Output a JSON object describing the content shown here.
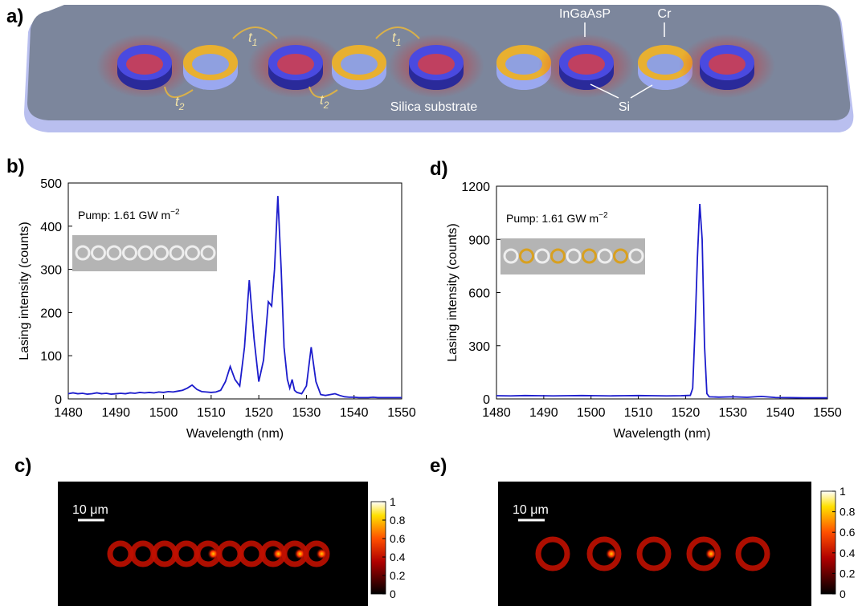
{
  "figure_a": {
    "label": "a)",
    "coupling": [
      {
        "symbol": "t",
        "subscript": "1"
      },
      {
        "symbol": "t",
        "subscript": "1"
      },
      {
        "symbol": "t",
        "subscript": "2"
      },
      {
        "symbol": "t",
        "subscript": "2"
      }
    ],
    "materials": [
      "InGaAsP",
      "Cr",
      "Silica substrate",
      "Si"
    ]
  },
  "chart_data": [
    {
      "type": "line",
      "panel_label": "b)",
      "xlabel": "Wavelength (nm)",
      "ylabel": "Lasing intensity (counts)",
      "annotation": {
        "text": "Pump: 1.61 GW m",
        "superscript": "−2"
      },
      "xlim": [
        1480,
        1550
      ],
      "xticks": [
        1480,
        1490,
        1500,
        1510,
        1520,
        1530,
        1540,
        1550
      ],
      "ylim": [
        0,
        500
      ],
      "yticks": [
        0,
        100,
        200,
        300,
        400,
        500
      ],
      "x": [
        1480,
        1481,
        1482,
        1483,
        1484,
        1485,
        1486,
        1487,
        1488,
        1489,
        1490,
        1491,
        1492,
        1493,
        1494,
        1495,
        1496,
        1497,
        1498,
        1499,
        1500,
        1501,
        1502,
        1503,
        1504,
        1505,
        1506,
        1507,
        1508,
        1509,
        1510,
        1511,
        1512,
        1513,
        1514,
        1515,
        1516,
        1517,
        1518,
        1519,
        1520,
        1521,
        1522,
        1522.7,
        1523.3,
        1524,
        1524.7,
        1525.3,
        1526,
        1526.5,
        1527,
        1527.5,
        1528,
        1529,
        1530,
        1531,
        1532,
        1533,
        1534,
        1535,
        1536,
        1537,
        1538,
        1539,
        1540,
        1541,
        1542,
        1543,
        1544,
        1545,
        1546,
        1547,
        1548,
        1549,
        1550
      ],
      "series": [
        {
          "color": "#1c1ccc",
          "values": [
            12,
            14,
            12,
            13,
            11,
            12,
            14,
            12,
            13,
            11,
            12,
            13,
            12,
            14,
            13,
            15,
            14,
            15,
            14,
            16,
            15,
            17,
            16,
            18,
            20,
            25,
            32,
            22,
            17,
            16,
            15,
            16,
            20,
            40,
            75,
            45,
            30,
            120,
            275,
            140,
            40,
            90,
            225,
            215,
            300,
            470,
            300,
            120,
            45,
            25,
            45,
            20,
            15,
            12,
            30,
            120,
            40,
            10,
            8,
            10,
            12,
            8,
            5,
            4,
            4,
            3,
            3,
            3,
            4,
            3,
            3,
            3,
            3,
            3,
            3
          ]
        }
      ]
    },
    {
      "type": "line",
      "panel_label": "d)",
      "xlabel": "Wavelength (nm)",
      "ylabel": "Lasing intensity (counts)",
      "annotation": {
        "text": "Pump: 1.61 GW m",
        "superscript": "−2"
      },
      "xlim": [
        1480,
        1550
      ],
      "xticks": [
        1480,
        1490,
        1500,
        1510,
        1520,
        1530,
        1540,
        1550
      ],
      "ylim": [
        0,
        1200
      ],
      "yticks": [
        0,
        300,
        600,
        900,
        1200
      ],
      "x": [
        1480,
        1483,
        1486,
        1489,
        1492,
        1495,
        1498,
        1501,
        1504,
        1507,
        1510,
        1513,
        1516,
        1519,
        1520,
        1521,
        1521.5,
        1522,
        1522.5,
        1523,
        1523.5,
        1524,
        1524.5,
        1525,
        1527,
        1530,
        1533,
        1536,
        1539,
        1542,
        1545,
        1548,
        1550
      ],
      "series": [
        {
          "color": "#1c1ccc",
          "values": [
            18,
            17,
            19,
            18,
            17,
            18,
            19,
            18,
            17,
            18,
            19,
            18,
            17,
            18,
            19,
            20,
            60,
            400,
            800,
            1100,
            900,
            300,
            30,
            12,
            10,
            12,
            9,
            14,
            8,
            7,
            6,
            6,
            6
          ]
        }
      ]
    }
  ],
  "figure_c": {
    "label": "c)",
    "scale_bar": "10 μm",
    "colorbar": {
      "lim": [
        0,
        1
      ],
      "ticks": [
        0,
        0.2,
        0.4,
        0.6,
        0.8,
        1
      ]
    }
  },
  "figure_e": {
    "label": "e)",
    "scale_bar": "10 μm",
    "colorbar": {
      "lim": [
        0,
        1
      ],
      "ticks": [
        0,
        0.2,
        0.4,
        0.6,
        0.8,
        1
      ]
    }
  }
}
